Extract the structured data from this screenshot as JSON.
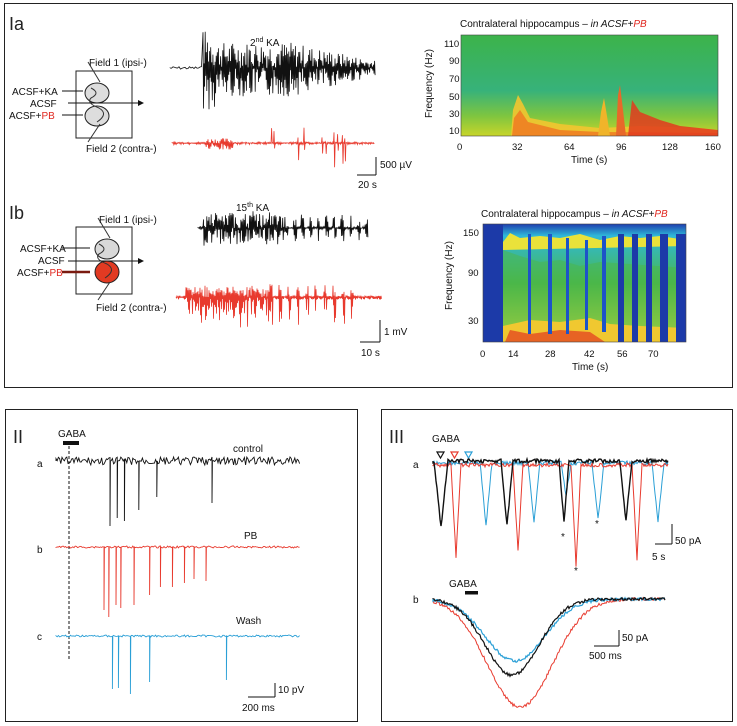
{
  "colors": {
    "control": "#111111",
    "pb": "#e83a2e",
    "wash": "#2a9fd6",
    "panel_border": "#222222"
  },
  "panel_I": {
    "Ia": {
      "label": "Ia",
      "trace_title_base": "2",
      "trace_title_sup": "nd",
      "trace_title_rest": " KA",
      "field1": "Field 1 (ipsi-)",
      "field2": "Field 2 (contra-)",
      "inputs": [
        "ACSF+KA",
        "ACSF",
        "ACSF+"
      ],
      "pb_word": "PB",
      "scalebar_v": "500 µV",
      "scalebar_h": "20 s",
      "spectro_title_a": "Contralateral hippocampus  – ",
      "spectro_title_b": "in ACSF+",
      "spectro_title_pb": "PB",
      "ylabel": "Frequency (Hz)",
      "xlabel": "Time (s)",
      "yticks": [
        "110",
        "90",
        "70",
        "50",
        "30",
        "10"
      ],
      "xticks": [
        "0",
        "32",
        "64",
        "96",
        "128",
        "160"
      ]
    },
    "Ib": {
      "label": "Ib",
      "trace_title_base": "15",
      "trace_title_sup": "th",
      "trace_title_rest": " KA",
      "field1": "Field 1 (ipsi-)",
      "field2": "Field 2 (contra-)",
      "inputs": [
        "ACSF+KA",
        "ACSF",
        "ACSF+"
      ],
      "pb_word": "PB",
      "scalebar_v": "1 mV",
      "scalebar_h": "10 s",
      "spectro_title_a": "Contralateral hippocampus  – ",
      "spectro_title_b": "in ACSF+",
      "spectro_title_pb": "PB",
      "ylabel": "Frequency (Hz)",
      "xlabel": "Time (s)",
      "yticks": [
        "150",
        "90",
        "30"
      ],
      "xticks": [
        "0",
        "14",
        "28",
        "42",
        "56",
        "70"
      ]
    }
  },
  "panel_II": {
    "label": "II",
    "gaba": "GABA",
    "rows": [
      {
        "letter": "a",
        "name": "control"
      },
      {
        "letter": "b",
        "name": "PB"
      },
      {
        "letter": "c",
        "name": "Wash"
      }
    ],
    "scalebar_v": "10 pV",
    "scalebar_h": "200 ms"
  },
  "panel_III": {
    "label": "III",
    "gaba_a": "GABA",
    "gaba_b": "GABA",
    "row_a": "a",
    "row_b": "b",
    "star": "*",
    "scalebar_a_v": "50 pA",
    "scalebar_a_h": "5 s",
    "scalebar_b_v": "50 pA",
    "scalebar_b_h": "500 ms"
  }
}
